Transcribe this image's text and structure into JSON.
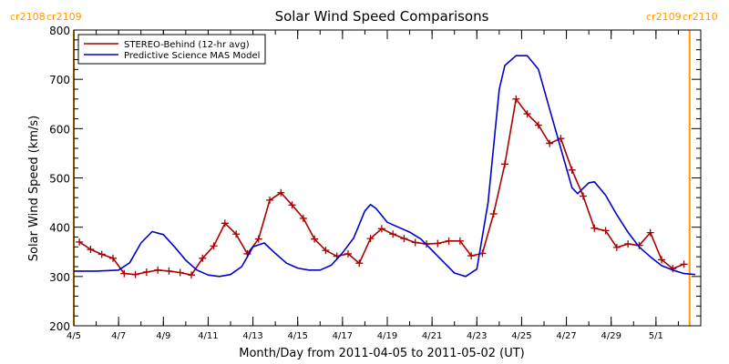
{
  "chart_data": {
    "type": "line",
    "title": "Solar Wind Speed Comparisons",
    "xlabel": "Month/Day from 2011-04-05 to 2011-05-02 (UT)",
    "ylabel": "Solar Wind Speed (km/s)",
    "xlim": [
      "2011-04-05",
      "2011-05-03"
    ],
    "ylim": [
      200,
      800
    ],
    "y_ticks": [
      200,
      300,
      400,
      500,
      600,
      700,
      800
    ],
    "x_ticks": [
      {
        "date": "2011-04-05",
        "label": "4/5"
      },
      {
        "date": "2011-04-07",
        "label": "4/7"
      },
      {
        "date": "2011-04-09",
        "label": "4/9"
      },
      {
        "date": "2011-04-11",
        "label": "4/11"
      },
      {
        "date": "2011-04-13",
        "label": "4/13"
      },
      {
        "date": "2011-04-15",
        "label": "4/15"
      },
      {
        "date": "2011-04-17",
        "label": "4/17"
      },
      {
        "date": "2011-04-19",
        "label": "4/19"
      },
      {
        "date": "2011-04-21",
        "label": "4/21"
      },
      {
        "date": "2011-04-23",
        "label": "4/23"
      },
      {
        "date": "2011-04-25",
        "label": "4/25"
      },
      {
        "date": "2011-04-27",
        "label": "4/27"
      },
      {
        "date": "2011-04-29",
        "label": "4/29"
      },
      {
        "date": "2011-05-01",
        "label": "5/1"
      }
    ],
    "grid": false,
    "legend_position": "top-left",
    "carrington_markers": [
      {
        "date": "2011-04-05",
        "label_left": "cr2108",
        "label_right": "cr2109",
        "side": "left"
      },
      {
        "date": "2011-05-02 12:00",
        "label_left": "cr2109",
        "label_right": "cr2110",
        "side": "right"
      }
    ],
    "series": [
      {
        "name": "STEREO-Behind (12-hr avg)",
        "color": "#aa0000",
        "marker": "plus",
        "points": [
          [
            "2011-04-05 06:00",
            370
          ],
          [
            "2011-04-05 18:00",
            355
          ],
          [
            "2011-04-06 06:00",
            345
          ],
          [
            "2011-04-06 18:00",
            337
          ],
          [
            "2011-04-07 06:00",
            306
          ],
          [
            "2011-04-07 18:00",
            304
          ],
          [
            "2011-04-08 06:00",
            309
          ],
          [
            "2011-04-08 18:00",
            313
          ],
          [
            "2011-04-09 06:00",
            311
          ],
          [
            "2011-04-09 18:00",
            308
          ],
          [
            "2011-04-10 06:00",
            303
          ],
          [
            "2011-04-10 18:00",
            337
          ],
          [
            "2011-04-11 06:00",
            362
          ],
          [
            "2011-04-11 18:00",
            408
          ],
          [
            "2011-04-12 06:00",
            386
          ],
          [
            "2011-04-12 18:00",
            346
          ],
          [
            "2011-04-13 06:00",
            376
          ],
          [
            "2011-04-13 18:00",
            455
          ],
          [
            "2011-04-14 06:00",
            470
          ],
          [
            "2011-04-14 18:00",
            445
          ],
          [
            "2011-04-15 06:00",
            418
          ],
          [
            "2011-04-15 18:00",
            376
          ],
          [
            "2011-04-16 06:00",
            353
          ],
          [
            "2011-04-16 18:00",
            341
          ],
          [
            "2011-04-17 06:00",
            346
          ],
          [
            "2011-04-17 18:00",
            327
          ],
          [
            "2011-04-18 06:00",
            377
          ],
          [
            "2011-04-18 18:00",
            397
          ],
          [
            "2011-04-19 06:00",
            386
          ],
          [
            "2011-04-19 18:00",
            377
          ],
          [
            "2011-04-20 06:00",
            369
          ],
          [
            "2011-04-20 18:00",
            366
          ],
          [
            "2011-04-21 06:00",
            367
          ],
          [
            "2011-04-21 18:00",
            372
          ],
          [
            "2011-04-22 06:00",
            372
          ],
          [
            "2011-04-22 18:00",
            342
          ],
          [
            "2011-04-23 06:00",
            347
          ],
          [
            "2011-04-23 18:00",
            427
          ],
          [
            "2011-04-24 06:00",
            528
          ],
          [
            "2011-04-24 18:00",
            660
          ],
          [
            "2011-04-25 06:00",
            630
          ],
          [
            "2011-04-25 18:00",
            607
          ],
          [
            "2011-04-26 06:00",
            570
          ],
          [
            "2011-04-26 18:00",
            580
          ],
          [
            "2011-04-27 06:00",
            516
          ],
          [
            "2011-04-27 18:00",
            463
          ],
          [
            "2011-04-28 06:00",
            398
          ],
          [
            "2011-04-28 18:00",
            393
          ],
          [
            "2011-04-29 06:00",
            359
          ],
          [
            "2011-04-29 18:00",
            366
          ],
          [
            "2011-04-30 06:00",
            363
          ],
          [
            "2011-04-30 18:00",
            389
          ],
          [
            "2011-05-01 06:00",
            334
          ],
          [
            "2011-05-01 18:00",
            316
          ],
          [
            "2011-05-02 06:00",
            325
          ]
        ]
      },
      {
        "name": "Predictive Science MAS Model",
        "color": "#0000cc",
        "marker": "none",
        "points": [
          [
            "2011-04-05 00:00",
            311
          ],
          [
            "2011-04-06 00:00",
            311
          ],
          [
            "2011-04-07 00:00",
            313
          ],
          [
            "2011-04-07 12:00",
            328
          ],
          [
            "2011-04-08 00:00",
            368
          ],
          [
            "2011-04-08 12:00",
            391
          ],
          [
            "2011-04-09 00:00",
            385
          ],
          [
            "2011-04-09 12:00",
            360
          ],
          [
            "2011-04-10 00:00",
            333
          ],
          [
            "2011-04-10 12:00",
            313
          ],
          [
            "2011-04-11 00:00",
            303
          ],
          [
            "2011-04-11 12:00",
            300
          ],
          [
            "2011-04-12 00:00",
            304
          ],
          [
            "2011-04-12 12:00",
            320
          ],
          [
            "2011-04-13 00:00",
            360
          ],
          [
            "2011-04-13 12:00",
            368
          ],
          [
            "2011-04-14 00:00",
            347
          ],
          [
            "2011-04-14 12:00",
            327
          ],
          [
            "2011-04-15 00:00",
            317
          ],
          [
            "2011-04-15 12:00",
            313
          ],
          [
            "2011-04-16 00:00",
            313
          ],
          [
            "2011-04-16 12:00",
            323
          ],
          [
            "2011-04-17 00:00",
            348
          ],
          [
            "2011-04-17 12:00",
            378
          ],
          [
            "2011-04-18 00:00",
            433
          ],
          [
            "2011-04-18 06:00",
            446
          ],
          [
            "2011-04-18 12:00",
            438
          ],
          [
            "2011-04-19 00:00",
            410
          ],
          [
            "2011-04-20 00:00",
            390
          ],
          [
            "2011-04-20 12:00",
            376
          ],
          [
            "2011-04-21 00:00",
            353
          ],
          [
            "2011-04-21 12:00",
            330
          ],
          [
            "2011-04-22 00:00",
            307
          ],
          [
            "2011-04-22 12:00",
            300
          ],
          [
            "2011-04-23 00:00",
            315
          ],
          [
            "2011-04-23 12:00",
            450
          ],
          [
            "2011-04-24 00:00",
            680
          ],
          [
            "2011-04-24 06:00",
            728
          ],
          [
            "2011-04-24 18:00",
            748
          ],
          [
            "2011-04-25 06:00",
            748
          ],
          [
            "2011-04-25 18:00",
            720
          ],
          [
            "2011-04-26 06:00",
            640
          ],
          [
            "2011-04-26 18:00",
            560
          ],
          [
            "2011-04-27 06:00",
            480
          ],
          [
            "2011-04-27 12:00",
            468
          ],
          [
            "2011-04-28 00:00",
            490
          ],
          [
            "2011-04-28 06:00",
            492
          ],
          [
            "2011-04-28 18:00",
            465
          ],
          [
            "2011-04-29 06:00",
            425
          ],
          [
            "2011-04-29 18:00",
            390
          ],
          [
            "2011-04-30 06:00",
            360
          ],
          [
            "2011-04-30 18:00",
            340
          ],
          [
            "2011-05-01 06:00",
            322
          ],
          [
            "2011-05-01 18:00",
            313
          ],
          [
            "2011-05-02 06:00",
            306
          ],
          [
            "2011-05-02 18:00",
            304
          ]
        ]
      }
    ]
  }
}
